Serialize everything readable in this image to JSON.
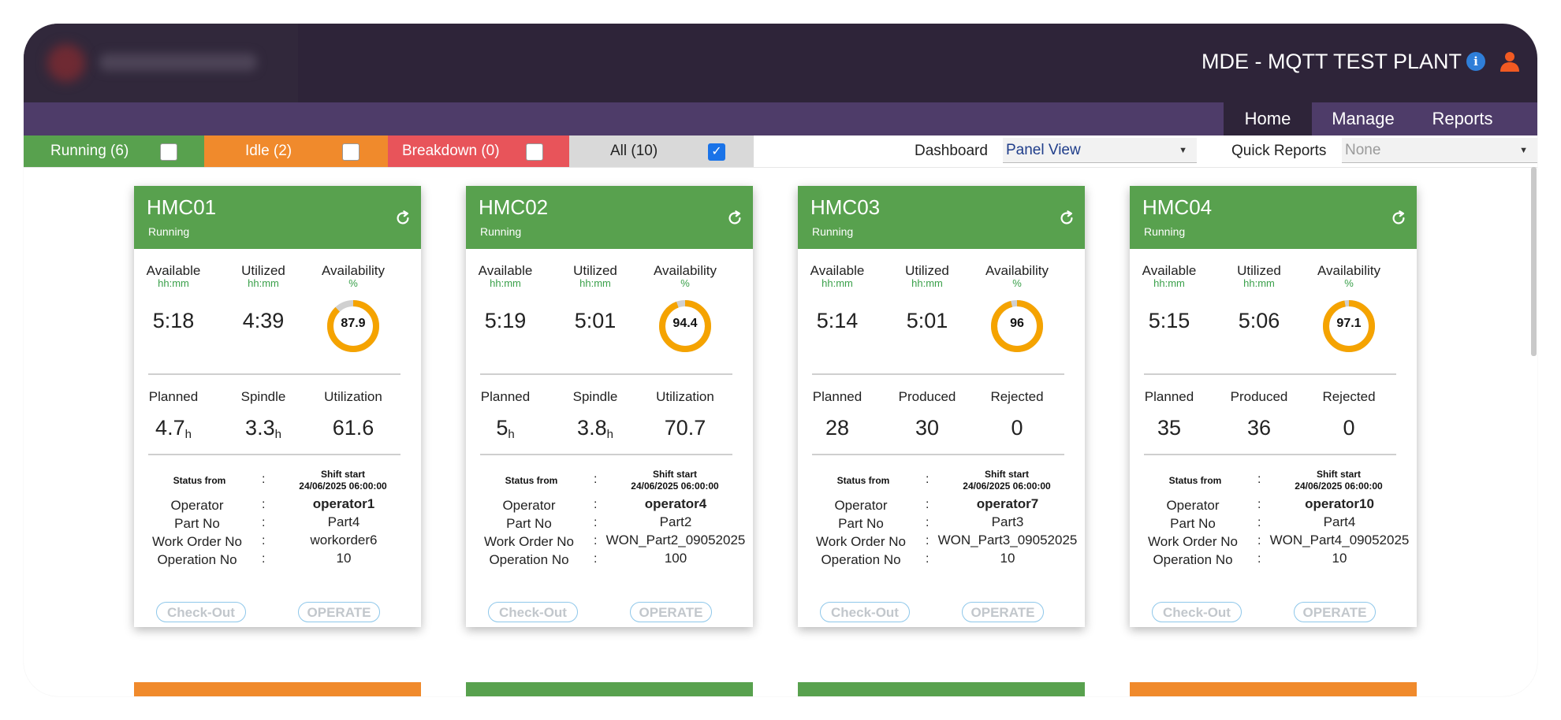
{
  "header": {
    "title": "MDE - MQTT TEST PLANT",
    "info_icon": "info-icon",
    "user_icon": "user-icon"
  },
  "nav": {
    "home": "Home",
    "manage": "Manage",
    "reports": "Reports"
  },
  "filters": {
    "running": {
      "label": "Running (6)",
      "checked": false,
      "color": "#58a14e"
    },
    "idle": {
      "label": "Idle (2)",
      "checked": false,
      "color": "#f08a2c"
    },
    "breakdown": {
      "label": "Breakdown (0)",
      "checked": false,
      "color": "#e8545a"
    },
    "all": {
      "label": "All (10)",
      "checked": true,
      "color": "#d9d9d9"
    }
  },
  "dashboard": {
    "label": "Dashboard",
    "selected": "Panel View"
  },
  "quick_reports": {
    "label": "Quick Reports",
    "selected": "None"
  },
  "labels": {
    "available": "Available",
    "utilized": "Utilized",
    "availability": "Availability",
    "hhmm": "hh:mm",
    "percent": "%",
    "planned": "Planned",
    "spindle": "Spindle",
    "utilization": "Utilization",
    "produced": "Produced",
    "rejected": "Rejected",
    "hour_unit": "h",
    "status_from": "Status from",
    "colon": ":",
    "operator": "Operator",
    "part_no": "Part No",
    "work_order_no": "Work Order No",
    "operation_no": "Operation No",
    "check_out": "Check-Out",
    "operate": "OPERATE"
  },
  "machines": [
    {
      "name": "HMC01",
      "status": "Running",
      "available": "5:18",
      "utilized": "4:39",
      "availability": 87.9,
      "m2": {
        "planned": "4.7",
        "col2": "3.3",
        "col3": "61.6"
      },
      "shift_title": "Shift start",
      "shift_time": "24/06/2025 06:00:00",
      "operator": "operator1",
      "part_no": "Part4",
      "work_order": "workorder6",
      "operation_no": "10"
    },
    {
      "name": "HMC02",
      "status": "Running",
      "available": "5:19",
      "utilized": "5:01",
      "availability": 94.4,
      "m2": {
        "planned": "5",
        "col2": "3.8",
        "col3": "70.7"
      },
      "shift_title": "Shift start",
      "shift_time": "24/06/2025 06:00:00",
      "operator": "operator4",
      "part_no": "Part2",
      "work_order": "WON_Part2_09052025",
      "operation_no": "100"
    },
    {
      "name": "HMC03",
      "status": "Running",
      "available": "5:14",
      "utilized": "5:01",
      "availability": 96,
      "m2": {
        "planned": "28",
        "col2": "30",
        "col3": "0"
      },
      "shift_title": "Shift start",
      "shift_time": "24/06/2025 06:00:00",
      "operator": "operator7",
      "part_no": "Part3",
      "work_order": "WON_Part3_09052025",
      "operation_no": "10"
    },
    {
      "name": "HMC04",
      "status": "Running",
      "available": "5:15",
      "utilized": "5:06",
      "availability": 97.1,
      "m2": {
        "planned": "35",
        "col2": "36",
        "col3": "0"
      },
      "shift_title": "Shift start",
      "shift_time": "24/06/2025 06:00:00",
      "operator": "operator10",
      "part_no": "Part4",
      "work_order": "WON_Part4_09052025",
      "operation_no": "10"
    }
  ],
  "colors": {
    "running": "#58a14e",
    "idle": "#f08a2c",
    "donut": "#f5a300",
    "donut_track": "#d0d0d0"
  }
}
